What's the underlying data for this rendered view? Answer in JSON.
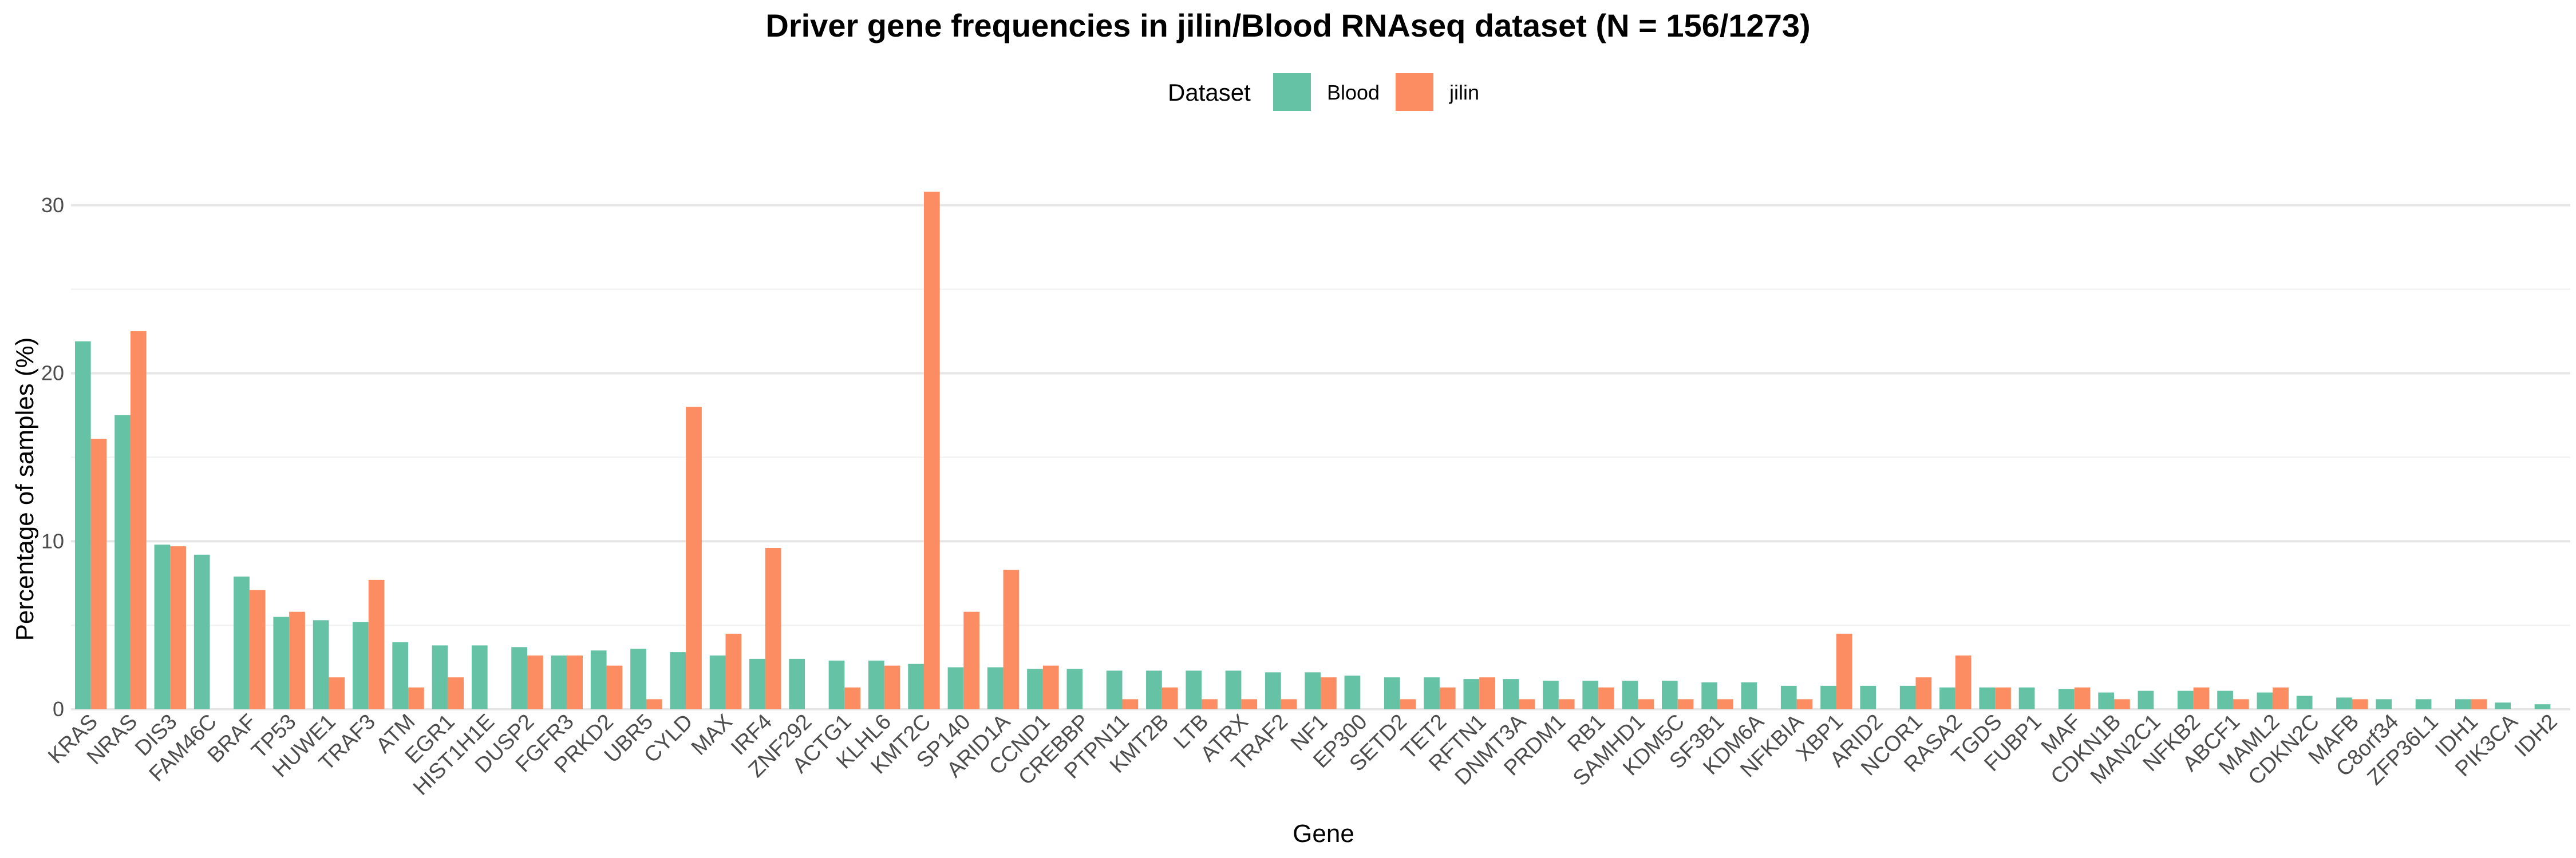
{
  "chart_data": {
    "type": "bar",
    "title": "Driver gene frequencies in jilin/Blood RNAseq dataset (N = 156/1273)",
    "xlabel": "Gene",
    "ylabel": "Percentage of samples (%)",
    "legend": {
      "title": "Dataset",
      "position": "top"
    },
    "ylim": [
      0,
      30
    ],
    "yticks": [
      0,
      10,
      20,
      30
    ],
    "grid": true,
    "categories": [
      "KRAS",
      "NRAS",
      "DIS3",
      "FAM46C",
      "BRAF",
      "TP53",
      "HUWE1",
      "TRAF3",
      "ATM",
      "EGR1",
      "HIST1H1E",
      "DUSP2",
      "FGFR3",
      "PRKD2",
      "UBR5",
      "CYLD",
      "MAX",
      "IRF4",
      "ZNF292",
      "ACTG1",
      "KLHL6",
      "KMT2C",
      "SP140",
      "ARID1A",
      "CCND1",
      "CREBBP",
      "PTPN11",
      "KMT2B",
      "LTB",
      "ATRX",
      "TRAF2",
      "NF1",
      "EP300",
      "SETD2",
      "TET2",
      "RFTN1",
      "DNMT3A",
      "PRDM1",
      "RB1",
      "SAMHD1",
      "KDM5C",
      "SF3B1",
      "KDM6A",
      "NFKBIA",
      "XBP1",
      "ARID2",
      "NCOR1",
      "RASA2",
      "TGDS",
      "FUBP1",
      "MAF",
      "CDKN1B",
      "MAN2C1",
      "NFKB2",
      "ABCF1",
      "MAML2",
      "CDKN2C",
      "MAFB",
      "C8orf34",
      "ZFP36L1",
      "IDH1",
      "PIK3CA",
      "IDH2"
    ],
    "series": [
      {
        "name": "Blood",
        "color": "#66c2a5",
        "values": [
          21.9,
          17.5,
          9.8,
          9.2,
          7.9,
          5.5,
          5.3,
          5.2,
          4.0,
          3.8,
          3.8,
          3.7,
          3.2,
          3.5,
          3.6,
          3.4,
          3.2,
          3.0,
          3.0,
          2.9,
          2.9,
          2.7,
          2.5,
          2.5,
          2.4,
          2.4,
          2.3,
          2.3,
          2.3,
          2.3,
          2.2,
          2.2,
          2.0,
          1.9,
          1.9,
          1.8,
          1.8,
          1.7,
          1.7,
          1.7,
          1.7,
          1.6,
          1.6,
          1.4,
          1.4,
          1.4,
          1.4,
          1.3,
          1.3,
          1.3,
          1.2,
          1.0,
          1.1,
          1.1,
          1.1,
          1.0,
          0.8,
          0.7,
          0.6,
          0.6,
          0.6,
          0.4,
          0.3
        ]
      },
      {
        "name": "jilin",
        "color": "#fc8d62",
        "values": [
          16.1,
          22.5,
          9.7,
          0,
          7.1,
          5.8,
          1.9,
          7.7,
          1.3,
          1.9,
          0,
          3.2,
          3.2,
          2.6,
          0.6,
          18.0,
          4.5,
          9.6,
          0,
          1.3,
          2.6,
          30.8,
          5.8,
          8.3,
          2.6,
          0,
          0.6,
          1.3,
          0.6,
          0.6,
          0.6,
          1.9,
          0,
          0.6,
          1.3,
          1.9,
          0.6,
          0.6,
          1.3,
          0.6,
          0.6,
          0.6,
          0,
          0.6,
          4.5,
          0,
          1.9,
          3.2,
          1.3,
          0,
          1.3,
          0.6,
          0,
          1.3,
          0.6,
          1.3,
          0,
          0.6,
          0,
          0,
          0.6,
          0,
          0
        ]
      }
    ]
  }
}
